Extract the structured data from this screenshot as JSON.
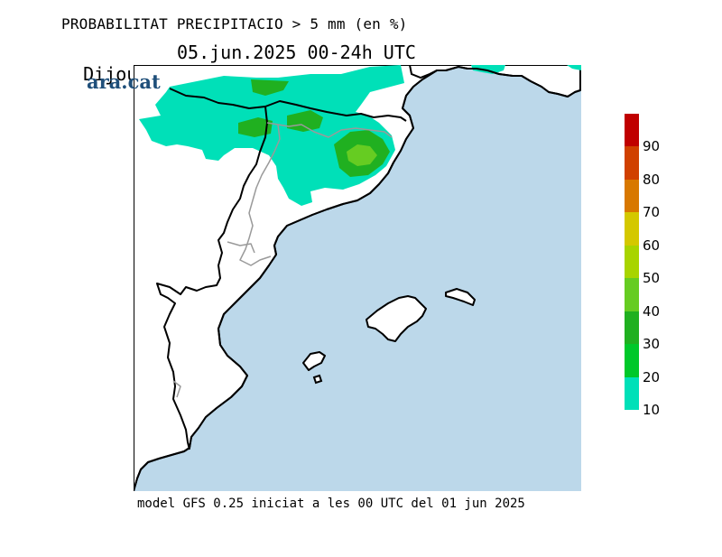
{
  "header": {
    "title": "PROBABILITAT PRECIPITACIO > 5 mm (en %)",
    "day": "Dijous",
    "date_range": "05.jun.2025 00-24h UTC"
  },
  "logo": {
    "text": "ara.cat"
  },
  "footer": {
    "text": "model GFS 0.25 iniciat a les 00 UTC del 01 jun 2025"
  },
  "colors": {
    "sea": "#bcd8ea",
    "land": "#ffffff",
    "coast": "#000000",
    "border": "#9a9a9a"
  },
  "colorbar": {
    "labels": [
      "10",
      "20",
      "30",
      "40",
      "50",
      "60",
      "70",
      "80",
      "90"
    ],
    "bins": [
      {
        "from": 10,
        "to": 20,
        "color": "#00e0b8"
      },
      {
        "from": 20,
        "to": 30,
        "color": "#00c82a"
      },
      {
        "from": 30,
        "to": 40,
        "color": "#20b020"
      },
      {
        "from": 40,
        "to": 50,
        "color": "#66cc22"
      },
      {
        "from": 50,
        "to": 60,
        "color": "#a8d400"
      },
      {
        "from": 60,
        "to": 70,
        "color": "#d4c800"
      },
      {
        "from": 70,
        "to": 80,
        "color": "#d87800"
      },
      {
        "from": 80,
        "to": 90,
        "color": "#d04000"
      },
      {
        "from": 90,
        "to": 100,
        "color": "#c00000"
      }
    ]
  }
}
